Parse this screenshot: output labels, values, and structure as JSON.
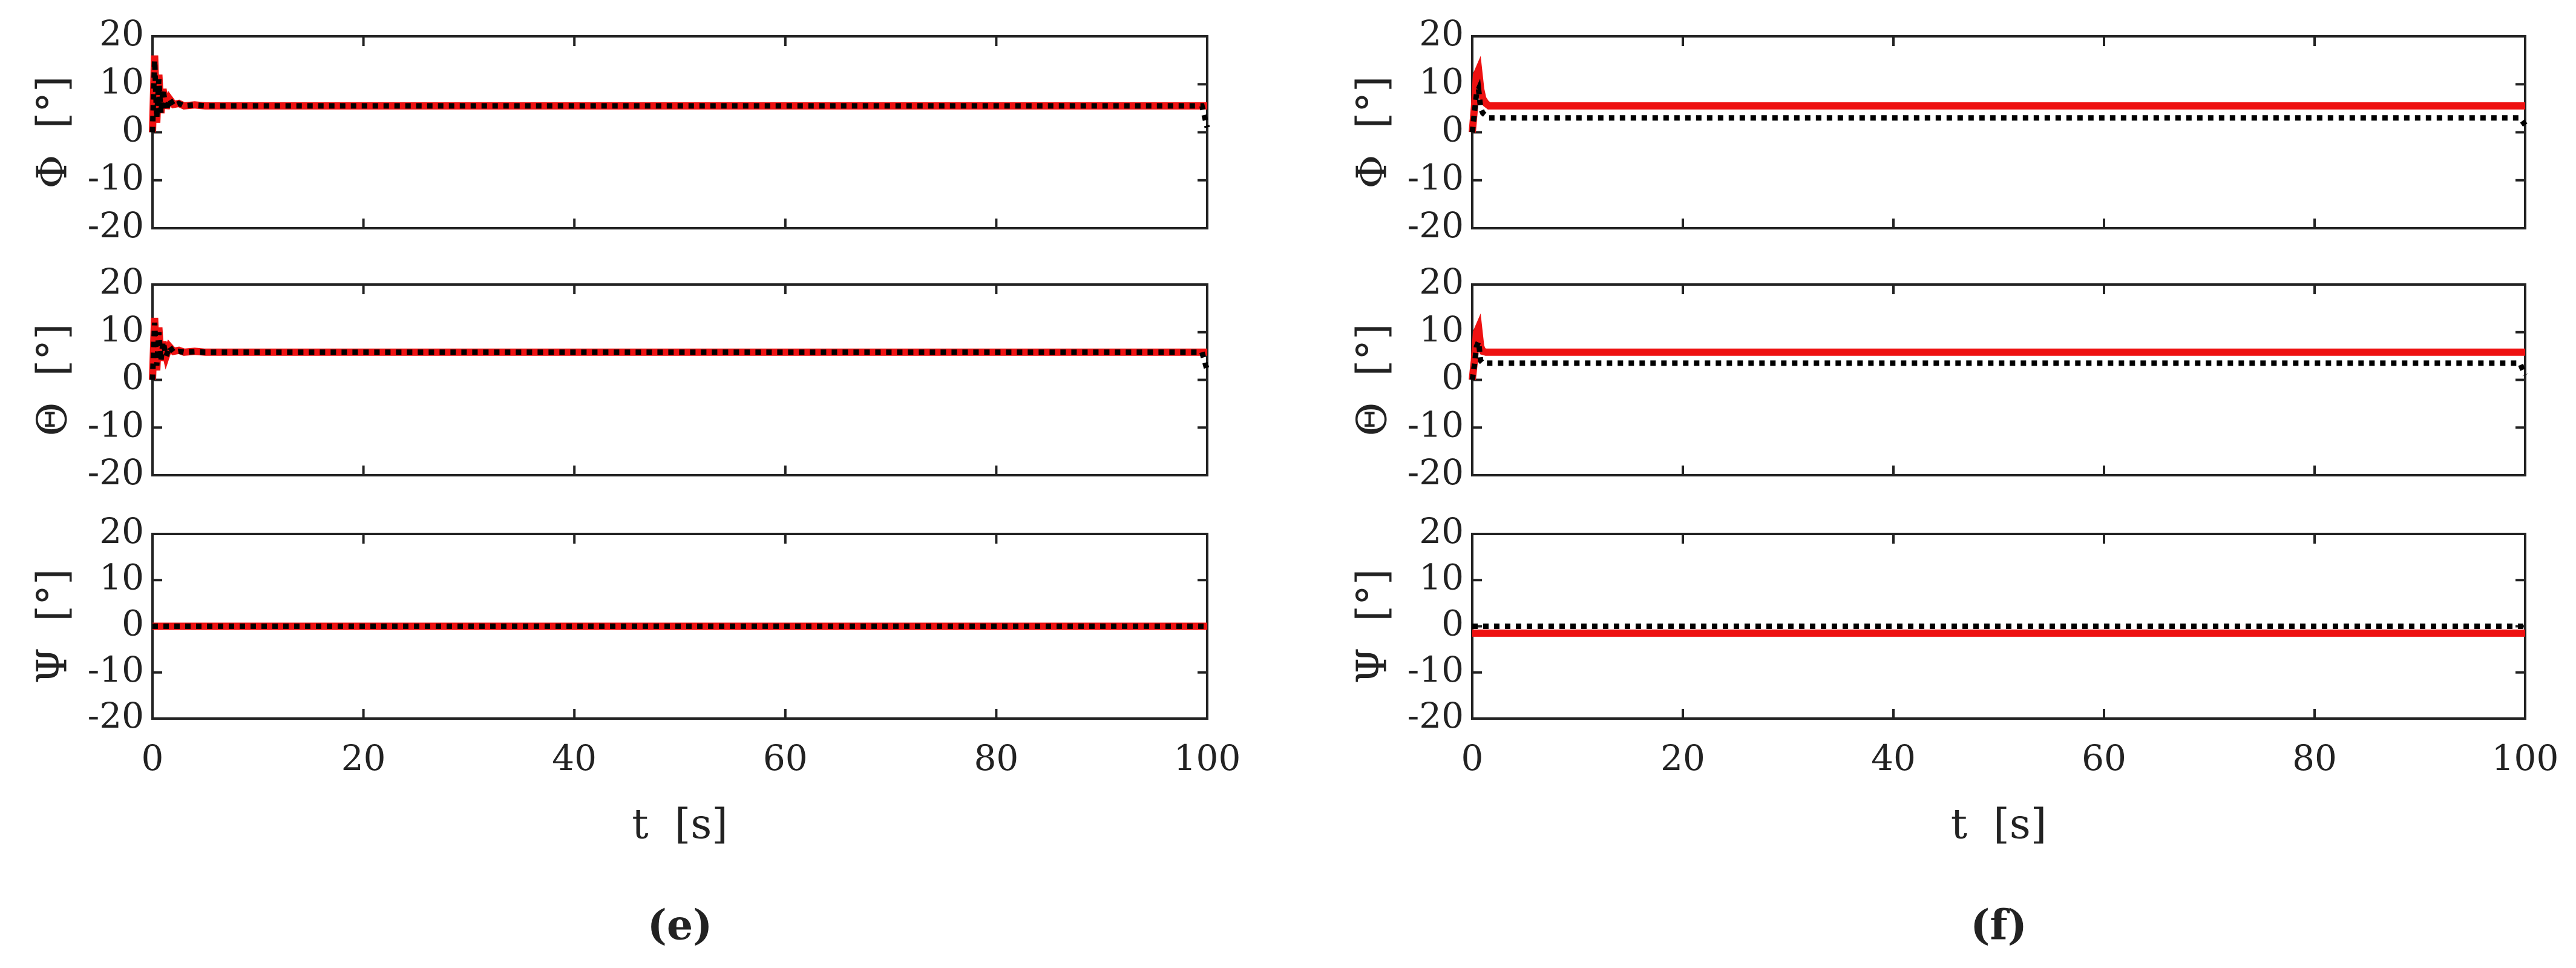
{
  "chart_data": [
    {
      "type": "line",
      "ylabel": "Φ  [°]",
      "xlim": [
        0,
        100
      ],
      "xticks": [
        0,
        20,
        40,
        60,
        80,
        100
      ],
      "ylim": [
        -20,
        20
      ],
      "yticks": [
        -20,
        -10,
        0,
        10,
        20
      ],
      "x": [
        0,
        0.2,
        0.4,
        0.6,
        0.8,
        1,
        1.3,
        1.6,
        2,
        2.5,
        3,
        4,
        5,
        10,
        20,
        40,
        60,
        80,
        99.5,
        100
      ],
      "series": [
        {
          "color": "#ee1111",
          "style": "solid",
          "values": [
            0,
            16,
            2,
            12,
            4,
            9,
            5,
            7,
            5.8,
            6,
            5.5,
            5.7,
            5.5,
            5.5,
            5.5,
            5.5,
            5.5,
            5.5,
            5.5,
            5.5
          ]
        },
        {
          "color": "#000000",
          "style": "dotted",
          "values": [
            0,
            15,
            3,
            11,
            4,
            9,
            4.5,
            7,
            5.5,
            6,
            5.5,
            5.7,
            5.5,
            5.5,
            5.5,
            5.5,
            5.5,
            5.5,
            5.5,
            1
          ]
        }
      ]
    },
    {
      "type": "line",
      "ylabel": "Θ  [°]",
      "xlim": [
        0,
        100
      ],
      "xticks": [
        0,
        20,
        40,
        60,
        80,
        100
      ],
      "ylim": [
        -20,
        20
      ],
      "yticks": [
        -20,
        -10,
        0,
        10,
        20
      ],
      "x": [
        0,
        0.2,
        0.4,
        0.6,
        0.8,
        1,
        1.3,
        1.6,
        2,
        2.5,
        3,
        4,
        5,
        10,
        20,
        40,
        60,
        80,
        99.5,
        100
      ],
      "series": [
        {
          "color": "#ee1111",
          "style": "solid",
          "values": [
            0,
            13,
            2,
            11,
            4,
            8,
            5,
            7,
            6,
            6.2,
            5.8,
            6,
            5.8,
            5.8,
            5.8,
            5.8,
            5.8,
            5.8,
            5.8,
            5.8
          ]
        },
        {
          "color": "#000000",
          "style": "dotted",
          "values": [
            0,
            12,
            3,
            10,
            4,
            8,
            5,
            7,
            5.8,
            6,
            5.8,
            5.9,
            5.8,
            5.8,
            5.8,
            5.8,
            5.8,
            5.8,
            5.8,
            2
          ]
        }
      ]
    },
    {
      "type": "line",
      "ylabel": "Ψ  [°]",
      "xlabel": "t  [s]",
      "xlim": [
        0,
        100
      ],
      "xticks": [
        0,
        20,
        40,
        60,
        80,
        100
      ],
      "ylim": [
        -20,
        20
      ],
      "yticks": [
        -20,
        -10,
        0,
        10,
        20
      ],
      "x": [
        0,
        100
      ],
      "series": [
        {
          "color": "#ee1111",
          "style": "solid",
          "values": [
            0,
            0
          ]
        },
        {
          "color": "#000000",
          "style": "dotted",
          "values": [
            0,
            0
          ]
        }
      ]
    },
    {
      "type": "line",
      "ylabel": "Φ  [°]",
      "xlim": [
        0,
        100
      ],
      "xticks": [
        0,
        20,
        40,
        60,
        80,
        100
      ],
      "ylim": [
        -20,
        20
      ],
      "yticks": [
        -20,
        -10,
        0,
        10,
        20
      ],
      "x": [
        0,
        0.2,
        0.4,
        0.6,
        0.8,
        1,
        1.3,
        1.6,
        2,
        3,
        5,
        10,
        20,
        40,
        60,
        80,
        99.5,
        100
      ],
      "series": [
        {
          "color": "#ee1111",
          "style": "solid",
          "values": [
            0,
            5,
            12,
            13,
            9,
            7,
            6,
            5.5,
            5.5,
            5.5,
            5.5,
            5.5,
            5.5,
            5.5,
            5.5,
            5.5,
            5.5,
            5.5
          ]
        },
        {
          "color": "#000000",
          "style": "dotted",
          "values": [
            0,
            4,
            8,
            9,
            5,
            4,
            3.5,
            3,
            3,
            3,
            3,
            3,
            3,
            3,
            3,
            3,
            3,
            1.5
          ]
        }
      ]
    },
    {
      "type": "line",
      "ylabel": "Θ  [°]",
      "xlim": [
        0,
        100
      ],
      "xticks": [
        0,
        20,
        40,
        60,
        80,
        100
      ],
      "ylim": [
        -20,
        20
      ],
      "yticks": [
        -20,
        -10,
        0,
        10,
        20
      ],
      "x": [
        0,
        0.2,
        0.4,
        0.6,
        0.8,
        1,
        1.3,
        1.6,
        2,
        3,
        5,
        10,
        20,
        40,
        60,
        80,
        99.5,
        100
      ],
      "series": [
        {
          "color": "#ee1111",
          "style": "solid",
          "values": [
            0,
            4,
            10,
            11,
            7,
            6,
            5.8,
            5.8,
            5.8,
            5.8,
            5.8,
            5.8,
            5.8,
            5.8,
            5.8,
            5.8,
            5.8,
            5.8
          ]
        },
        {
          "color": "#000000",
          "style": "dotted",
          "values": [
            0,
            3,
            7,
            8,
            4,
            3.5,
            3.5,
            3.5,
            3.5,
            3.5,
            3.5,
            3.5,
            3.5,
            3.5,
            3.5,
            3.5,
            3.5,
            1
          ]
        }
      ]
    },
    {
      "type": "line",
      "ylabel": "Ψ  [°]",
      "xlabel": "t  [s]",
      "xlim": [
        0,
        100
      ],
      "xticks": [
        0,
        20,
        40,
        60,
        80,
        100
      ],
      "ylim": [
        -20,
        20
      ],
      "yticks": [
        -20,
        -10,
        0,
        10,
        20
      ],
      "x": [
        0,
        100
      ],
      "series": [
        {
          "color": "#ee1111",
          "style": "solid",
          "values": [
            -1.5,
            -1.5
          ]
        },
        {
          "color": "#000000",
          "style": "dotted",
          "values": [
            0,
            0
          ]
        }
      ]
    }
  ],
  "captions": [
    "(e)",
    "(f)"
  ]
}
